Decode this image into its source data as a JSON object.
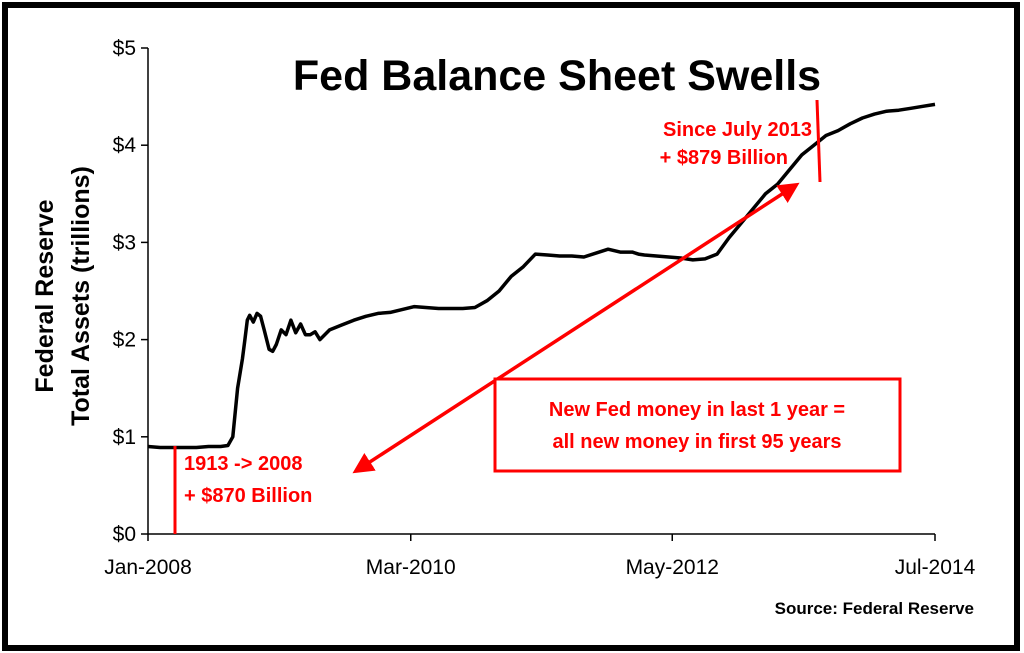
{
  "chart_data": {
    "type": "line",
    "title": "Fed Balance Sheet Swells",
    "ylabel": [
      "Federal Reserve",
      "Total Assets (trillions)"
    ],
    "xlabel": "",
    "x_ticks": [
      "Jan-2008",
      "Mar-2010",
      "May-2012",
      "Jul-2014"
    ],
    "x_tick_values": [
      2008.0,
      2010.17,
      2012.33,
      2014.5
    ],
    "xlim": [
      2008.0,
      2014.5
    ],
    "y_ticks": [
      "$0",
      "$1",
      "$2",
      "$3",
      "$4",
      "$5"
    ],
    "y_tick_values": [
      0,
      1,
      2,
      3,
      4,
      5
    ],
    "ylim": [
      0,
      5
    ],
    "grid": false,
    "line_color": "#000000",
    "accent_color": "#ff0000",
    "series": [
      {
        "x": [
          2008.0,
          2008.1,
          2008.2,
          2008.3,
          2008.4,
          2008.5,
          2008.6,
          2008.66,
          2008.7,
          2008.74,
          2008.78,
          2008.8,
          2008.82,
          2008.84,
          2008.87,
          2008.9,
          2008.93,
          2008.96,
          2009.0,
          2009.03,
          2009.06,
          2009.1,
          2009.14,
          2009.18,
          2009.22,
          2009.26,
          2009.3,
          2009.34,
          2009.38,
          2009.42,
          2009.5,
          2009.6,
          2009.7,
          2009.8,
          2009.9,
          2010.0,
          2010.2,
          2010.4,
          2010.6,
          2010.7,
          2010.8,
          2010.9,
          2011.0,
          2011.1,
          2011.2,
          2011.3,
          2011.4,
          2011.5,
          2011.6,
          2011.8,
          2011.9,
          2012.0,
          2012.05,
          2012.1,
          2012.2,
          2012.3,
          2012.4,
          2012.5,
          2012.6,
          2012.7,
          2012.8,
          2012.9,
          2013.0,
          2013.1,
          2013.2,
          2013.3,
          2013.4,
          2013.5,
          2013.6,
          2013.7,
          2013.8,
          2013.9,
          2014.0,
          2014.1,
          2014.2,
          2014.3,
          2014.4,
          2014.5
        ],
        "values": [
          0.9,
          0.89,
          0.89,
          0.89,
          0.89,
          0.9,
          0.9,
          0.91,
          1.0,
          1.5,
          1.8,
          2.0,
          2.2,
          2.25,
          2.18,
          2.27,
          2.24,
          2.1,
          1.9,
          1.88,
          1.95,
          2.1,
          2.05,
          2.2,
          2.07,
          2.16,
          2.05,
          2.05,
          2.08,
          2.0,
          2.1,
          2.15,
          2.2,
          2.24,
          2.27,
          2.28,
          2.34,
          2.32,
          2.32,
          2.33,
          2.4,
          2.5,
          2.65,
          2.75,
          2.88,
          2.87,
          2.86,
          2.86,
          2.85,
          2.93,
          2.9,
          2.9,
          2.88,
          2.87,
          2.86,
          2.85,
          2.84,
          2.82,
          2.83,
          2.88,
          3.05,
          3.2,
          3.35,
          3.5,
          3.6,
          3.75,
          3.9,
          4.0,
          4.1,
          4.15,
          4.22,
          4.28,
          4.32,
          4.35,
          4.36,
          4.38,
          4.4,
          4.42
        ]
      }
    ],
    "annotations": [
      {
        "text": [
          "Since July 2013",
          "+ $879 Billion"
        ]
      },
      {
        "text": [
          "1913 -> 2008",
          "+ $870 Billion"
        ]
      },
      {
        "text": [
          "New Fed money in last 1 year =",
          "all new money in first 95 years"
        ]
      }
    ],
    "source": "Source: Federal Reserve"
  }
}
